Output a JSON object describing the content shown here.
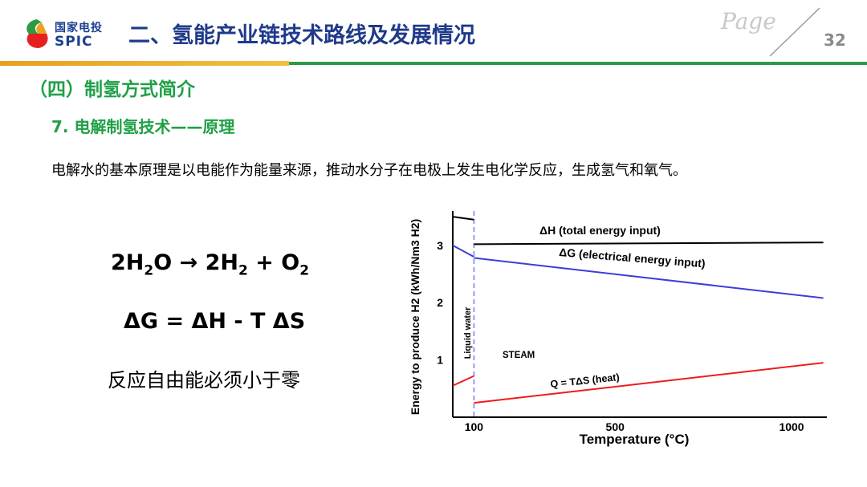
{
  "header": {
    "logo_cn": "国家电投",
    "logo_en": "SPIC",
    "title": "二、氢能产业链技术路线及发展情况",
    "page_label": "Page",
    "page_number": "32"
  },
  "section_title": "（四）制氢方式简介",
  "subsection_title": "7. 电解制氢技术——原理",
  "description": "电解水的基本原理是以电能作为能量来源，推动水分子在电极上发生电化学反应，生成氢气和氧气。",
  "equations": {
    "reaction": {
      "left_coef": "2H",
      "left_sub": "2",
      "left_tail": "O",
      "arrow": "→",
      "right_coef": "2H",
      "right_sub": "2",
      "plus": "+ O",
      "right_sub2": "2"
    },
    "gibbs": "ΔG = ΔH - T ΔS",
    "note": "反应自由能必须小于零"
  },
  "colors": {
    "title_blue": "#1f3a8a",
    "section_green": "#1fa046",
    "line_black": "#000000",
    "line_blue": "#3a3fd6",
    "line_red": "#ee1c1c",
    "phase_dash": "#aab0ee"
  },
  "chart_data": {
    "type": "line",
    "xlabel": "Temperature (°C)",
    "ylabel": "Energy to produce H2 (kWh/Nm3 H2)",
    "x_ticks": [
      "100",
      "500",
      "1000"
    ],
    "y_ticks": [
      "1",
      "2",
      "3"
    ],
    "xlim": [
      40,
      1100
    ],
    "ylim": [
      0,
      3.6
    ],
    "phase_boundary_x": 100,
    "region_labels": [
      "Liquid water",
      "STEAM"
    ],
    "series": [
      {
        "name": "ΔH (total energy input)",
        "x": [
          40,
          100
        ],
        "y": [
          3.5,
          3.45
        ]
      },
      {
        "name": "ΔH (total energy input)",
        "x": [
          100,
          1090
        ],
        "y": [
          3.02,
          3.05
        ]
      },
      {
        "name": "ΔG (electrical energy input)",
        "x": [
          40,
          100
        ],
        "y": [
          3.0,
          2.8
        ]
      },
      {
        "name": "ΔG (electrical energy input)",
        "x": [
          100,
          1090
        ],
        "y": [
          2.78,
          2.08
        ]
      },
      {
        "name": "Q = TΔS (heat)",
        "x": [
          40,
          100
        ],
        "y": [
          0.55,
          0.72
        ]
      },
      {
        "name": "Q = TΔS (heat)",
        "x": [
          100,
          1090
        ],
        "y": [
          0.25,
          0.95
        ]
      }
    ]
  }
}
